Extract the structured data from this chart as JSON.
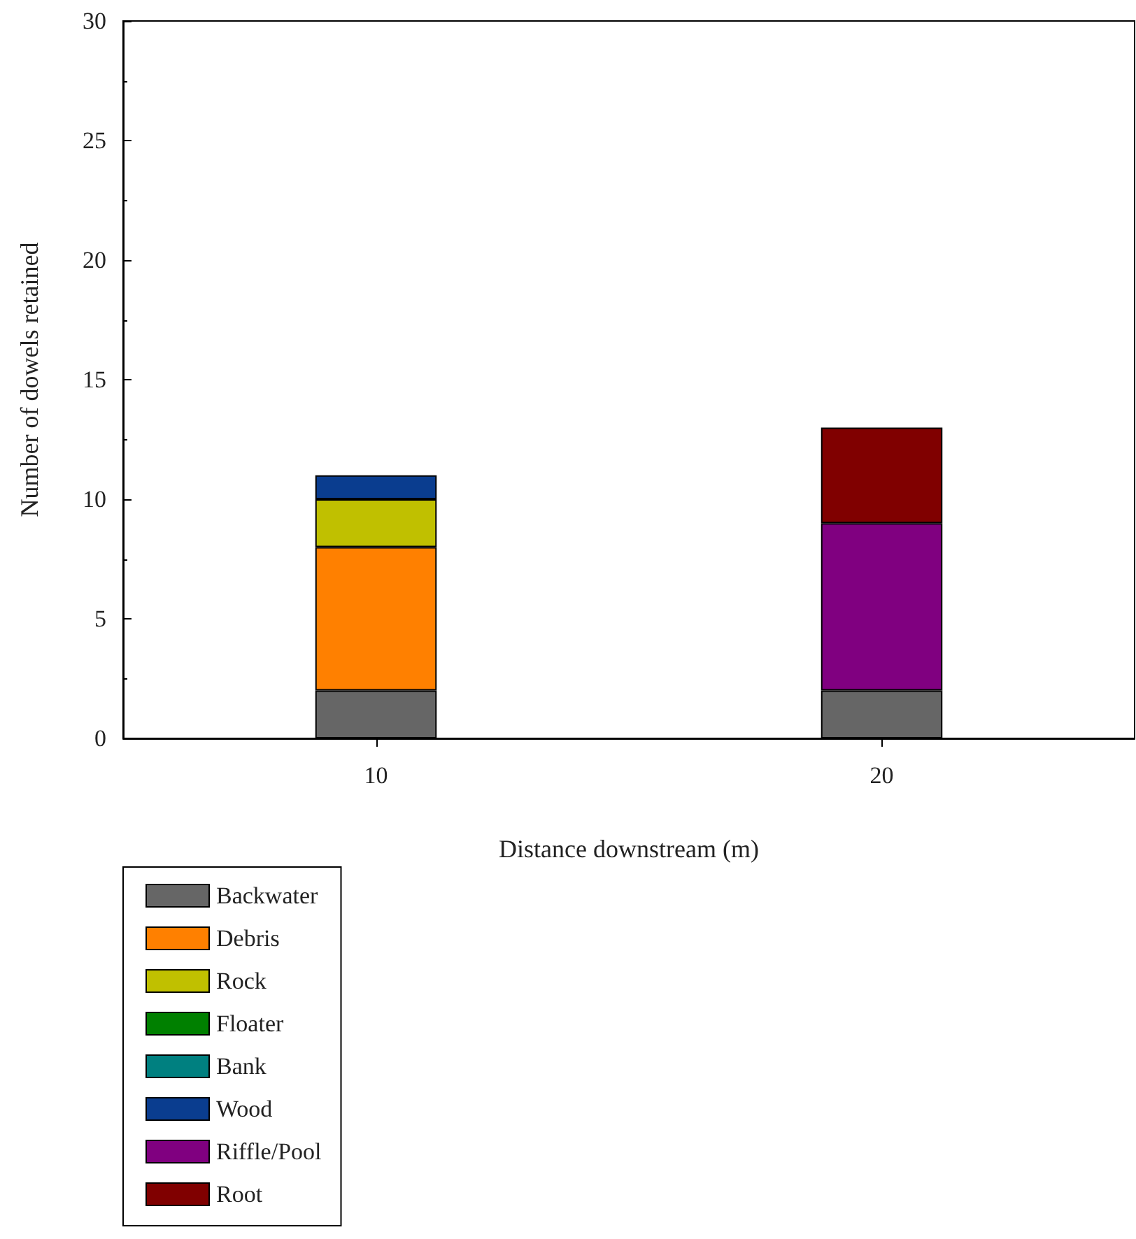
{
  "chart_data": {
    "type": "bar",
    "stacked": true,
    "xlabel": "Distance downstream (m)",
    "ylabel": "Number of dowels retained",
    "categories": [
      "10",
      "20"
    ],
    "series": [
      {
        "name": "Backwater",
        "color": "#666666",
        "values": [
          2,
          2
        ]
      },
      {
        "name": "Debris",
        "color": "#ff8000",
        "values": [
          6,
          0
        ]
      },
      {
        "name": "Rock",
        "color": "#c0c000",
        "values": [
          2,
          0
        ]
      },
      {
        "name": "Floater",
        "color": "#008000",
        "values": [
          0,
          0
        ]
      },
      {
        "name": "Bank",
        "color": "#008080",
        "values": [
          0,
          0
        ]
      },
      {
        "name": "Wood",
        "color": "#0a3d8f",
        "values": [
          1,
          0
        ]
      },
      {
        "name": "Riffle/Pool",
        "color": "#800080",
        "values": [
          0,
          7
        ]
      },
      {
        "name": "Root",
        "color": "#800000",
        "values": [
          0,
          4
        ]
      }
    ],
    "ylim": [
      0,
      30
    ],
    "yticks": [
      0,
      5,
      10,
      15,
      20,
      25,
      30
    ],
    "grid": false,
    "legend": "bottom left"
  }
}
